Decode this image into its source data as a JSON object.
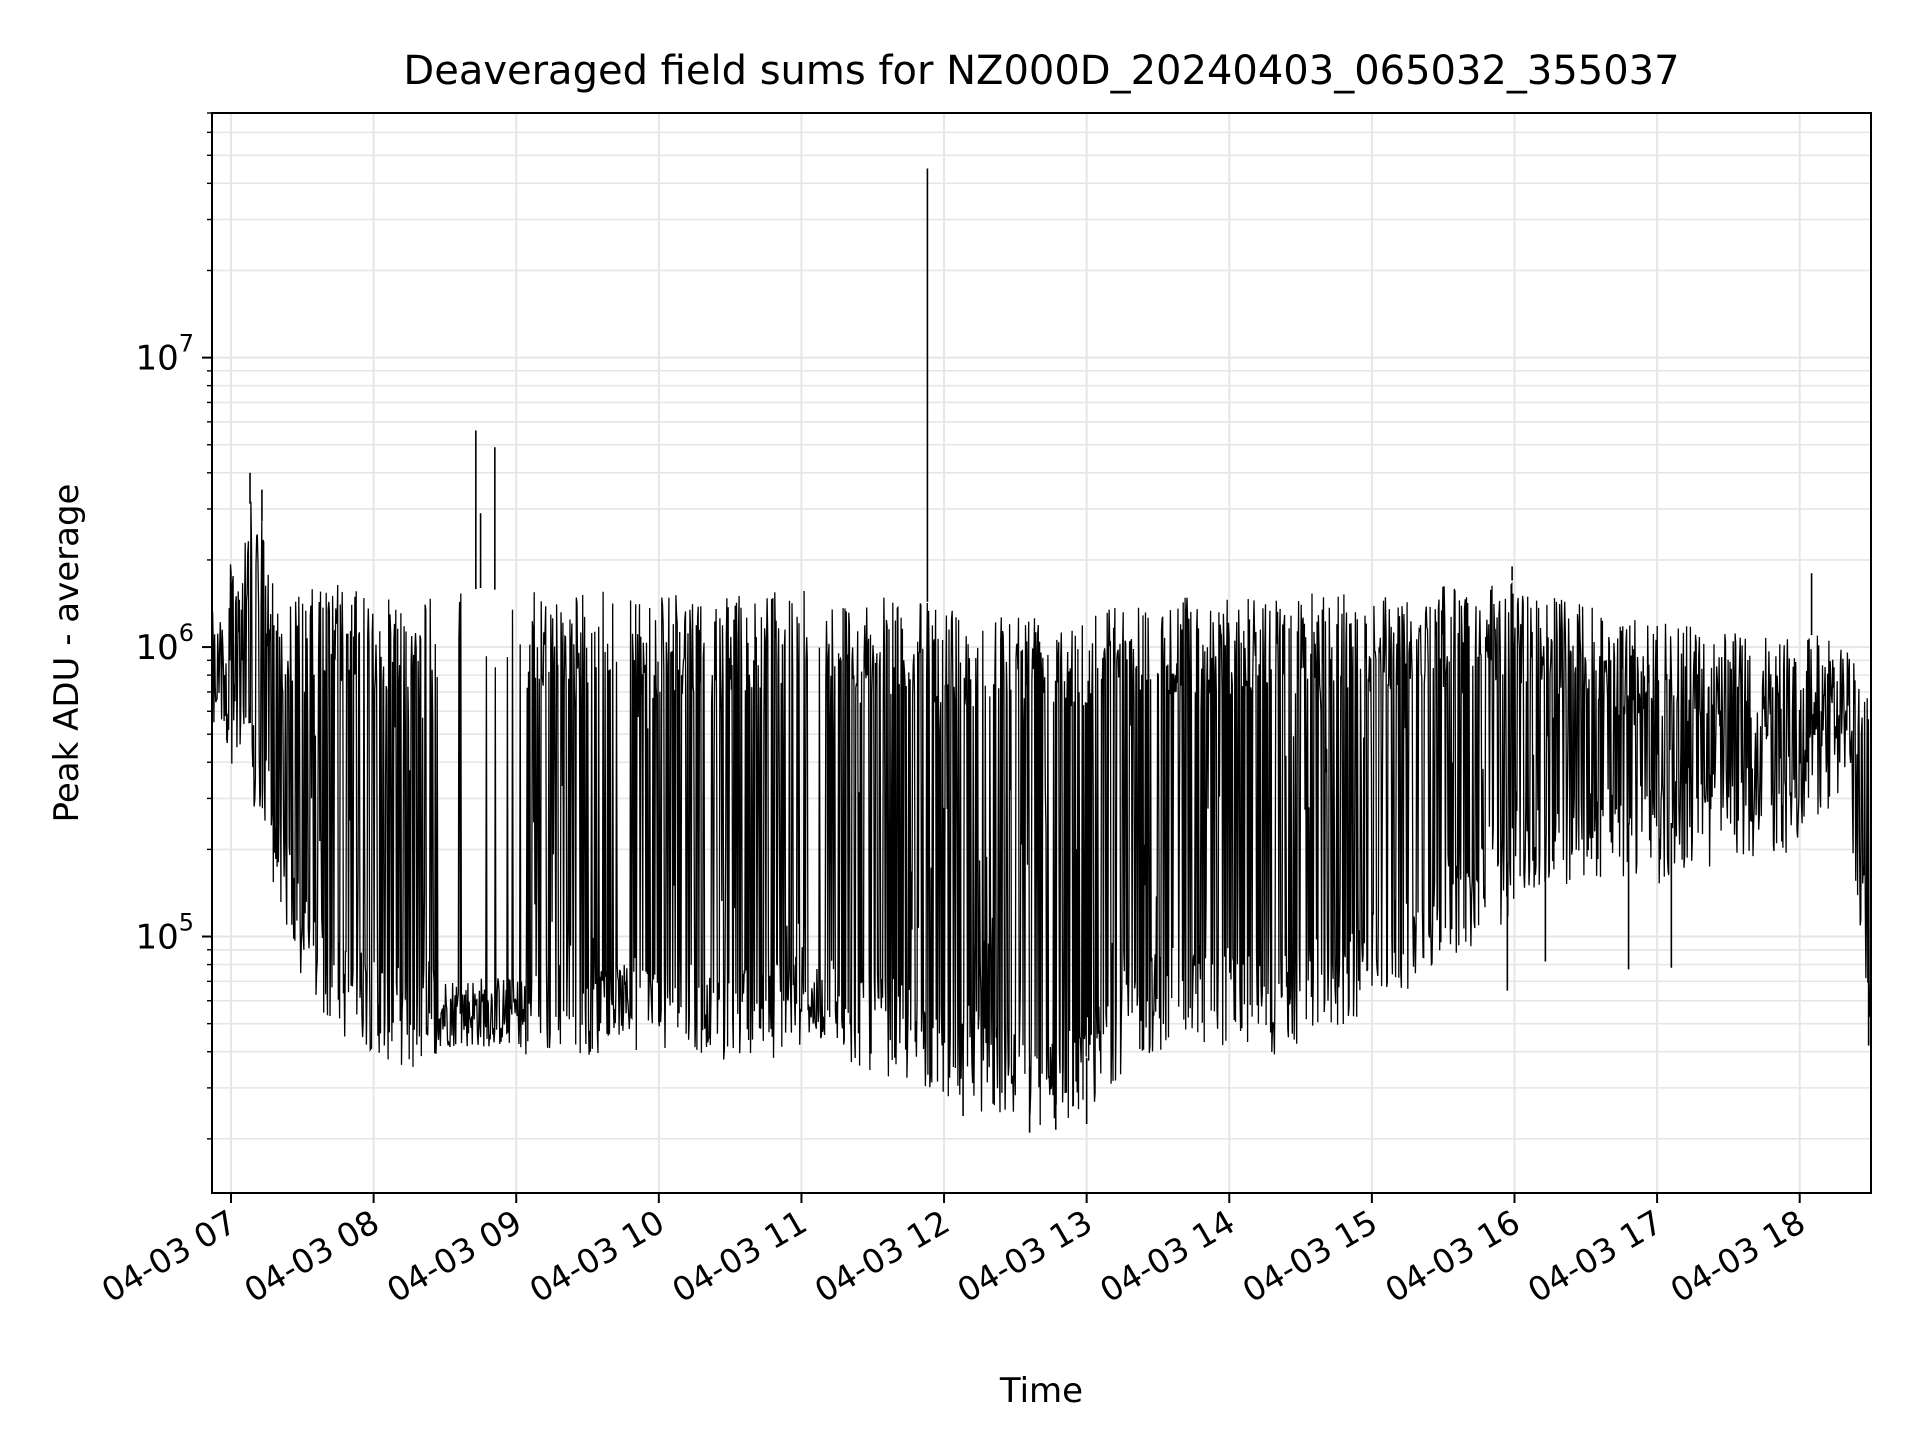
{
  "chart_data": {
    "type": "line",
    "title": "Deaveraged field sums for NZ000D_20240403_065032_355037",
    "xlabel": "Time",
    "ylabel": "Peak ADU - average",
    "yscale": "log",
    "grid": true,
    "legend": "none",
    "line_color": "#000000",
    "grid_color": "#e6e6e6",
    "xlim": [
      "2024-04-03 06:52",
      "2024-04-03 18:30"
    ],
    "ylim": [
      13000,
      70000000
    ],
    "x_ticks": [
      {
        "value": "2024-04-03 07:00",
        "label": "04-03 07"
      },
      {
        "value": "2024-04-03 08:00",
        "label": "04-03 08"
      },
      {
        "value": "2024-04-03 09:00",
        "label": "04-03 09"
      },
      {
        "value": "2024-04-03 10:00",
        "label": "04-03 10"
      },
      {
        "value": "2024-04-03 11:00",
        "label": "04-03 11"
      },
      {
        "value": "2024-04-03 12:00",
        "label": "04-03 12"
      },
      {
        "value": "2024-04-03 13:00",
        "label": "04-03 13"
      },
      {
        "value": "2024-04-03 14:00",
        "label": "04-03 14"
      },
      {
        "value": "2024-04-03 15:00",
        "label": "04-03 15"
      },
      {
        "value": "2024-04-03 16:00",
        "label": "04-03 16"
      },
      {
        "value": "2024-04-03 17:00",
        "label": "04-03 17"
      },
      {
        "value": "2024-04-03 18:00",
        "label": "04-03 18"
      }
    ],
    "y_ticks": [
      {
        "value": 100000,
        "base": "10",
        "exp": "5"
      },
      {
        "value": 1000000,
        "base": "10",
        "exp": "6"
      },
      {
        "value": 10000000,
        "base": "10",
        "exp": "7"
      }
    ],
    "series": [
      {
        "envelope": [
          {
            "x": "2024-04-03 06:52",
            "low": 600000,
            "high": 1050000
          },
          {
            "x": "2024-04-03 07:00",
            "low": 400000,
            "high": 2000000
          },
          {
            "x": "2024-04-03 07:10",
            "low": 250000,
            "high": 3500000
          },
          {
            "x": "2024-04-03 07:20",
            "low": 130000,
            "high": 1500000
          },
          {
            "x": "2024-04-03 07:30",
            "low": 65000,
            "high": 1550000
          },
          {
            "x": "2024-04-03 07:45",
            "low": 45000,
            "high": 1700000
          },
          {
            "x": "2024-04-03 08:00",
            "low": 40000,
            "high": 1450000
          },
          {
            "x": "2024-04-03 08:15",
            "low": 33000,
            "high": 1500000
          },
          {
            "x": "2024-04-03 08:30",
            "low": 40000,
            "high": 1500000
          },
          {
            "x": "2024-04-03 08:45",
            "low": 38000,
            "high": 1600000
          },
          {
            "x": "2024-04-03 09:00",
            "low": 36000,
            "high": 1550000
          },
          {
            "x": "2024-04-03 09:20",
            "low": 40000,
            "high": 1550000
          },
          {
            "x": "2024-04-03 09:40",
            "low": 38000,
            "high": 1600000
          },
          {
            "x": "2024-04-03 10:00",
            "low": 38000,
            "high": 1500000
          },
          {
            "x": "2024-04-03 10:20",
            "low": 36000,
            "high": 1550000
          },
          {
            "x": "2024-04-03 10:40",
            "low": 35000,
            "high": 1550000
          },
          {
            "x": "2024-04-03 11:00",
            "low": 42000,
            "high": 1600000
          },
          {
            "x": "2024-04-03 11:20",
            "low": 36000,
            "high": 1450000
          },
          {
            "x": "2024-04-03 11:40",
            "low": 32000,
            "high": 1500000
          },
          {
            "x": "2024-04-03 12:00",
            "low": 28000,
            "high": 1400000
          },
          {
            "x": "2024-04-03 12:20",
            "low": 24000,
            "high": 1350000
          },
          {
            "x": "2024-04-03 12:40",
            "low": 22000,
            "high": 1400000
          },
          {
            "x": "2024-04-03 13:00",
            "low": 24000,
            "high": 1400000
          },
          {
            "x": "2024-04-03 13:20",
            "low": 38000,
            "high": 1450000
          },
          {
            "x": "2024-04-03 13:40",
            "low": 42000,
            "high": 1500000
          },
          {
            "x": "2024-04-03 14:00",
            "low": 42000,
            "high": 1500000
          },
          {
            "x": "2024-04-03 14:20",
            "low": 38000,
            "high": 1500000
          },
          {
            "x": "2024-04-03 14:40",
            "low": 45000,
            "high": 1550000
          },
          {
            "x": "2024-04-03 15:00",
            "low": 55000,
            "high": 1550000
          },
          {
            "x": "2024-04-03 15:20",
            "low": 70000,
            "high": 1600000
          },
          {
            "x": "2024-04-03 15:40",
            "low": 85000,
            "high": 1650000
          },
          {
            "x": "2024-04-03 16:00",
            "low": 120000,
            "high": 1700000
          },
          {
            "x": "2024-04-03 16:20",
            "low": 150000,
            "high": 1500000
          },
          {
            "x": "2024-04-03 16:40",
            "low": 160000,
            "high": 1300000
          },
          {
            "x": "2024-04-03 17:00",
            "low": 150000,
            "high": 1250000
          },
          {
            "x": "2024-04-03 17:20",
            "low": 170000,
            "high": 1150000
          },
          {
            "x": "2024-04-03 17:40",
            "low": 180000,
            "high": 1100000
          },
          {
            "x": "2024-04-03 18:00",
            "low": 200000,
            "high": 1100000
          },
          {
            "x": "2024-04-03 18:20",
            "low": 300000,
            "high": 1100000
          },
          {
            "x": "2024-04-03 18:30",
            "low": 45000,
            "high": 700000
          }
        ],
        "quiet_intervals": [
          {
            "start": "2024-04-03 08:27",
            "end": "2024-04-03 09:03",
            "level": 55000
          },
          {
            "start": "2024-04-03 09:35",
            "end": "2024-04-03 09:48",
            "level": 60000
          },
          {
            "start": "2024-04-03 10:18",
            "end": "2024-04-03 10:22",
            "level": 55000
          },
          {
            "start": "2024-04-03 11:03",
            "end": "2024-04-03 11:10",
            "level": 58000
          }
        ],
        "spikes": [
          {
            "x": "2024-04-03 07:00",
            "y": 2000000
          },
          {
            "x": "2024-04-03 07:08",
            "y": 4000000
          },
          {
            "x": "2024-04-03 07:13",
            "y": 3500000
          },
          {
            "x": "2024-04-03 08:43",
            "y": 5600000
          },
          {
            "x": "2024-04-03 08:45",
            "y": 2900000
          },
          {
            "x": "2024-04-03 08:51",
            "y": 4900000
          },
          {
            "x": "2024-04-03 11:53",
            "y": 45000000
          },
          {
            "x": "2024-04-03 15:59",
            "y": 1900000
          },
          {
            "x": "2024-04-03 18:05",
            "y": 1800000
          }
        ],
        "dips": [
          {
            "x": "2024-04-03 12:08",
            "y": 24000
          },
          {
            "x": "2024-04-03 12:36",
            "y": 21000
          },
          {
            "x": "2024-04-03 12:47",
            "y": 21500
          },
          {
            "x": "2024-04-03 13:00",
            "y": 22500
          },
          {
            "x": "2024-04-03 15:57",
            "y": 65000
          },
          {
            "x": "2024-04-03 16:13",
            "y": 82000
          },
          {
            "x": "2024-04-03 16:48",
            "y": 77000
          },
          {
            "x": "2024-04-03 17:06",
            "y": 78000
          },
          {
            "x": "2024-04-03 18:29",
            "y": 42000
          }
        ]
      }
    ]
  }
}
